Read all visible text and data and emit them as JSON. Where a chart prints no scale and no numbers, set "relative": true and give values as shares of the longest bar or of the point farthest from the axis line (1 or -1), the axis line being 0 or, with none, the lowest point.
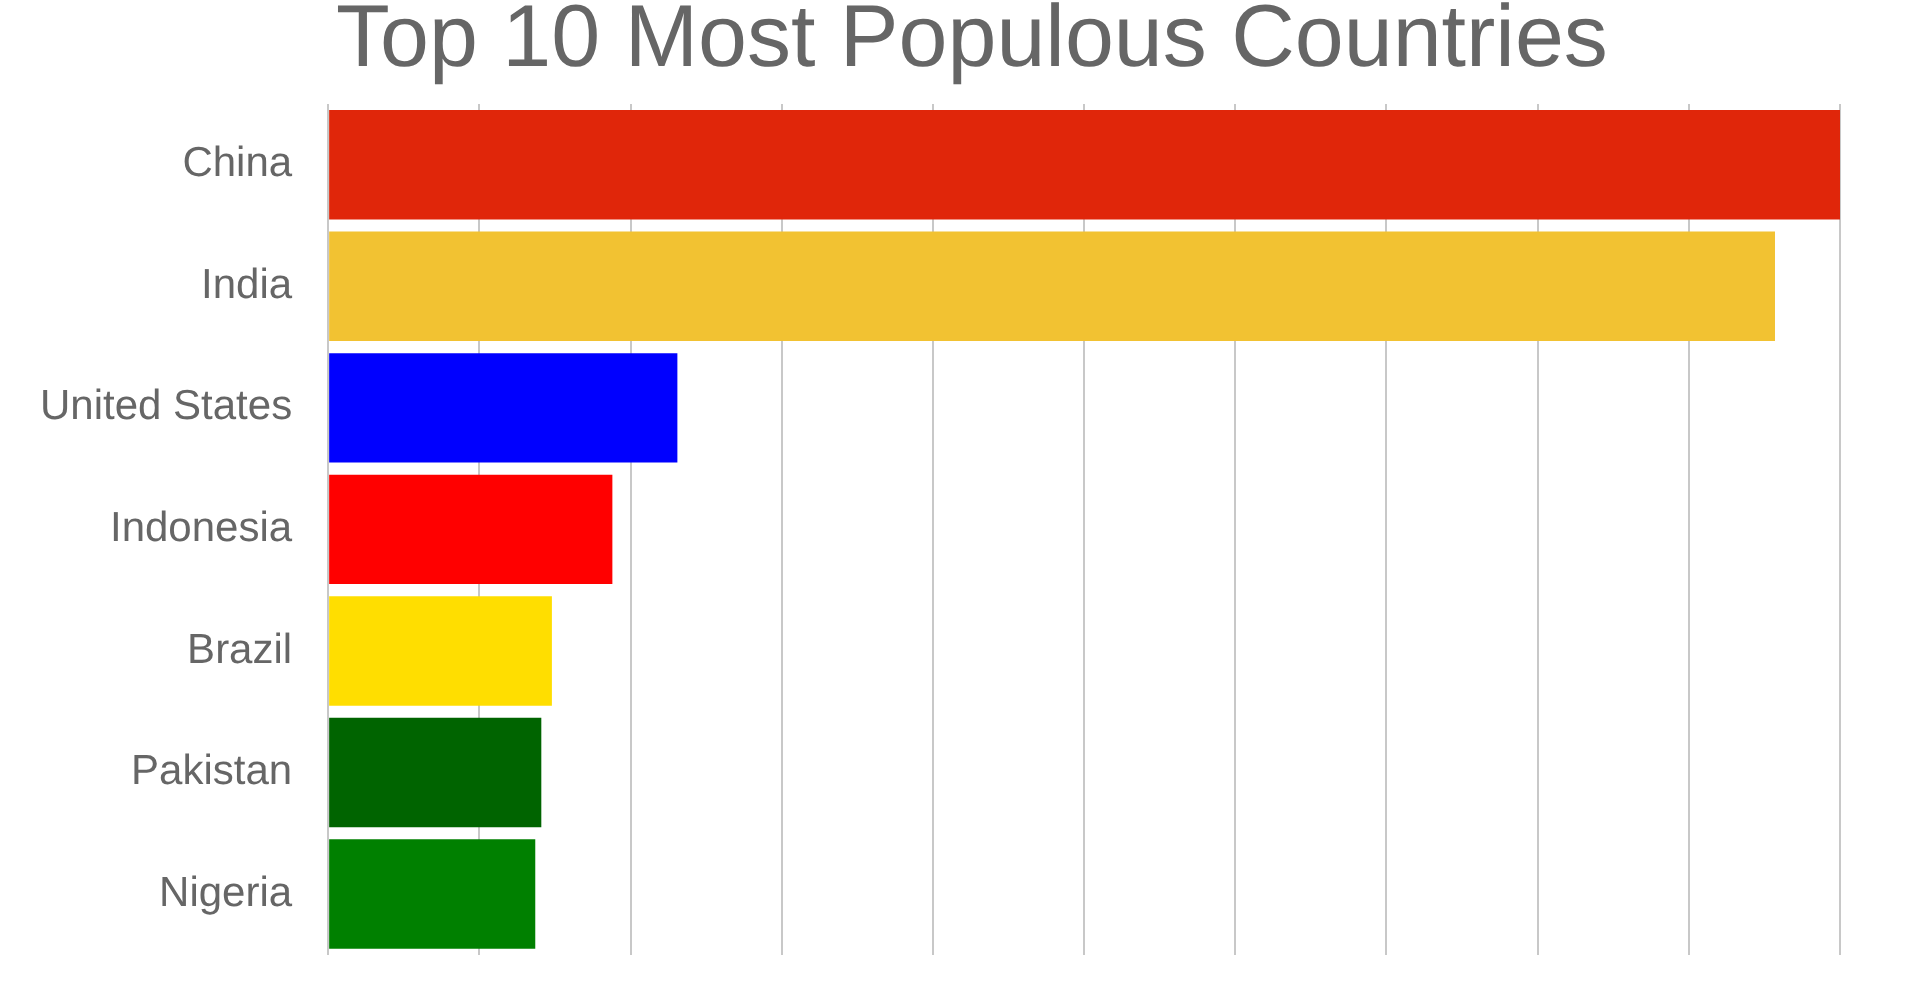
{
  "chart_data": {
    "type": "bar",
    "orientation": "horizontal",
    "relative": true,
    "title": "Top 10 Most Populous Countries",
    "categories": [
      "China",
      "India",
      "United States",
      "Indonesia",
      "Brazil",
      "Pakistan",
      "Nigeria"
    ],
    "values": [
      1,
      0.957,
      0.231,
      0.188,
      0.148,
      0.141,
      0.137
    ],
    "colors": [
      "#e0260a",
      "#f2c232",
      "#0000ff",
      "#ff0000",
      "#ffde00",
      "#006400",
      "#008000"
    ],
    "grid": "x",
    "legend": false
  }
}
